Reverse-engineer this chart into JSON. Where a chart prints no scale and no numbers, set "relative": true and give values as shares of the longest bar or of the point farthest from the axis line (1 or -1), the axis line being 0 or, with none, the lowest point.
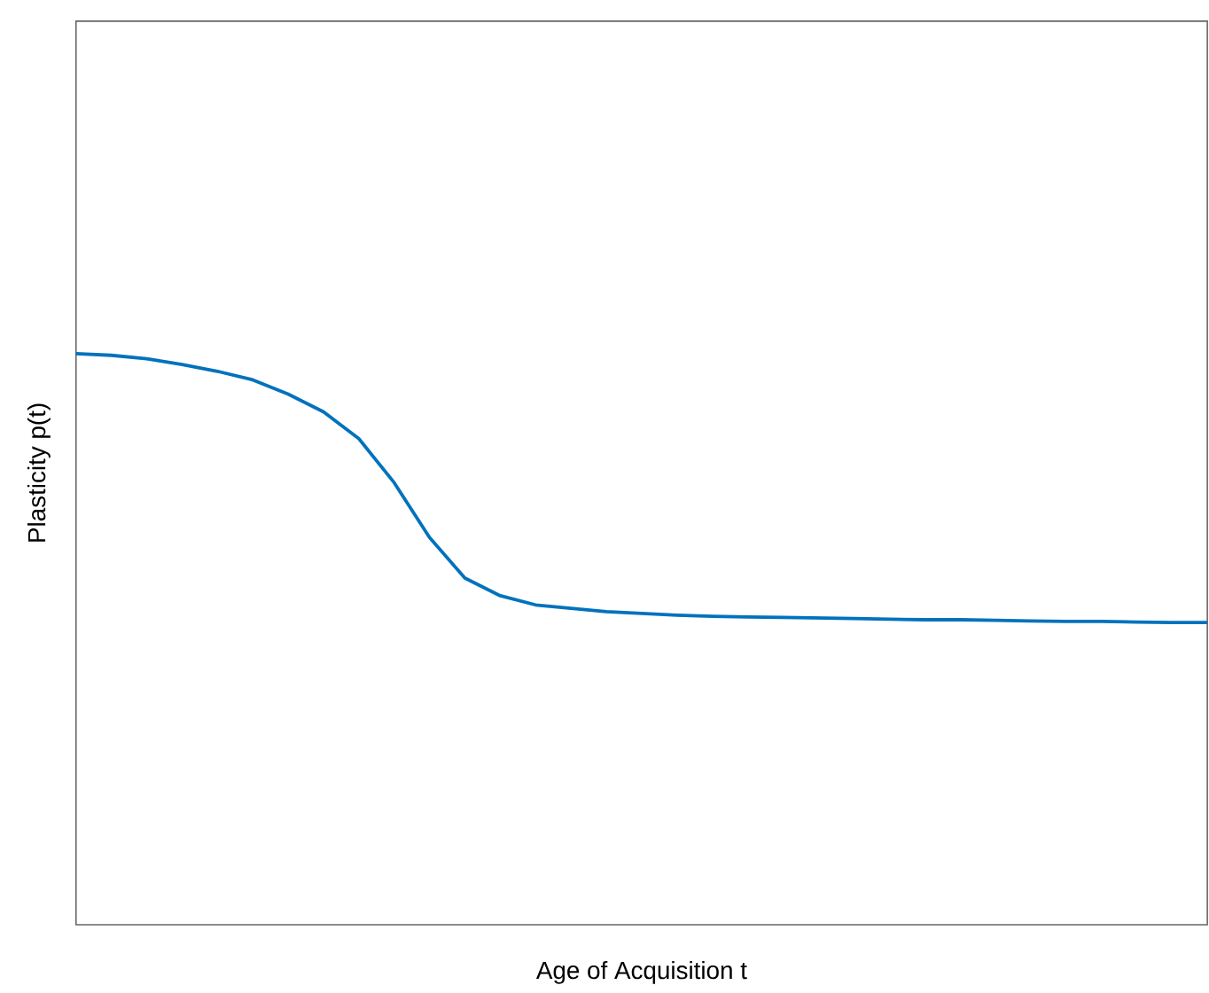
{
  "chart_data": {
    "type": "line",
    "relative": true,
    "xlabel": "Age of Acquisition t",
    "ylabel": "Plasticity p(t)",
    "categories": [
      null,
      null,
      null,
      null,
      null,
      null,
      null,
      null,
      null,
      null,
      null,
      null,
      null,
      null,
      null,
      null,
      null,
      null,
      null,
      null,
      null,
      null,
      null,
      null,
      null,
      null,
      null,
      null,
      null,
      null,
      null,
      null,
      null
    ],
    "series": [
      {
        "color": "#0072bd",
        "values": [
          1,
          0.997,
          0.991,
          0.981,
          0.969,
          0.954,
          0.929,
          0.898,
          0.851,
          0.774,
          0.678,
          0.607,
          0.576,
          0.56,
          0.554,
          0.548,
          0.545,
          0.542,
          0.54,
          0.539,
          0.538,
          0.537,
          0.536,
          0.535,
          0.534,
          0.534,
          0.533,
          0.532,
          0.531,
          0.531,
          0.53,
          0.529,
          0.529
        ]
      }
    ],
    "marker": "none",
    "line_style": "solid"
  }
}
